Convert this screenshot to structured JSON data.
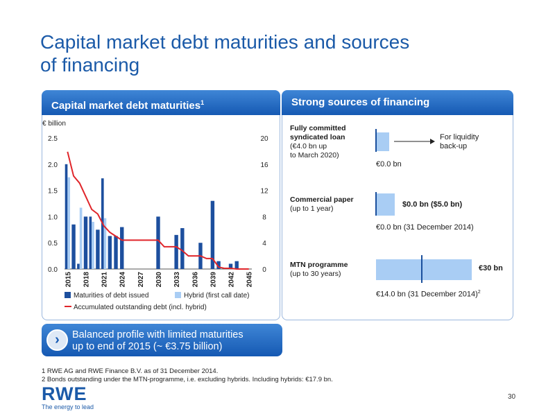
{
  "page": {
    "title_line1": "Capital market debt maturities and sources",
    "title_line2": "of financing",
    "page_number": "30"
  },
  "left_panel": {
    "header": "Capital market debt maturities",
    "header_sup": "1"
  },
  "right_panel": {
    "header": "Strong sources of financing",
    "items": [
      {
        "title_lines": [
          "Fully committed",
          "syndicated loan"
        ],
        "sub_lines": [
          "(€4.0 bn up",
          "to March 2020)"
        ],
        "used_label": "€0.0 bn",
        "arrow_text_lines": [
          "For liquidity",
          "back-up"
        ]
      },
      {
        "title_lines": [
          "Commercial paper"
        ],
        "sub_lines": [
          "(up to 1 year)"
        ],
        "box_label": "$0.0 bn ($5.0 bn)",
        "used_label": "€0.0 bn (31 December 2014)"
      },
      {
        "title_lines": [
          "MTN programme"
        ],
        "sub_lines": [
          "(up to 30 years)"
        ],
        "box_label": "€30 bn",
        "used_label": "€14.0 bn (31 December 2014)",
        "used_sup": "2"
      }
    ],
    "colors": {
      "box_fill": "#a9cdf4",
      "marker": "#1a4f9c"
    }
  },
  "callout": {
    "line1": "Balanced profile with limited maturities",
    "line2": "up to end of 2015 (~ €3.75 billion)"
  },
  "footnotes": [
    "1  RWE AG and RWE Finance B.V. as of 31 December 2014.",
    "2  Bonds outstanding under the MTN-programme, i.e. excluding hybrids. Including hybrids: €17.9 bn."
  ],
  "logo": {
    "text": "RWE",
    "tagline": "The energy to lead"
  },
  "chart_data": {
    "type": "bar",
    "ylabel": "€ billion",
    "ylim": [
      0,
      2.5
    ],
    "y_ticks": [
      "0.0",
      "0.5",
      "1.0",
      "1.5",
      "2.0",
      "2.5"
    ],
    "y2lim": [
      0,
      20
    ],
    "y2_ticks": [
      "0",
      "4",
      "8",
      "12",
      "16",
      "20"
    ],
    "x_tick_labels": [
      "2015",
      "2018",
      "2021",
      "2024",
      "2027",
      "2030",
      "2033",
      "2036",
      "2039",
      "2042",
      "2045"
    ],
    "years": [
      2015,
      2016,
      2017,
      2018,
      2019,
      2020,
      2021,
      2022,
      2023,
      2024,
      2025,
      2026,
      2027,
      2028,
      2029,
      2030,
      2031,
      2032,
      2033,
      2034,
      2035,
      2036,
      2037,
      2038,
      2039,
      2040,
      2041,
      2042,
      2043,
      2044,
      2045
    ],
    "series": [
      {
        "name": "Maturities of debt issued",
        "kind": "bar",
        "color": "#1d4f9e",
        "values": [
          2.0,
          0.85,
          0.1,
          1.0,
          1.0,
          0.75,
          1.73,
          0.63,
          0.63,
          0.8,
          0,
          0,
          0,
          0,
          0,
          1.0,
          0,
          0,
          0.65,
          0.78,
          0,
          0,
          0.5,
          0,
          1.3,
          0.15,
          0,
          0.1,
          0.15,
          0,
          0
        ]
      },
      {
        "name": "Hybrid (first call date)",
        "kind": "bar",
        "color": "#a9cdf4",
        "values": [
          1.75,
          0,
          1.17,
          0,
          0.9,
          0,
          0.97,
          0,
          0,
          0,
          0,
          0,
          0,
          0,
          0,
          0,
          0,
          0,
          0,
          0,
          0,
          0,
          0,
          0,
          0,
          0,
          0,
          0,
          0,
          0,
          0
        ]
      },
      {
        "name": "Accumulated outstanding debt (incl. hybrid)",
        "kind": "line",
        "axis": "right",
        "color": "#e0252a",
        "values": [
          17.9,
          14.2,
          13.1,
          11.1,
          9.1,
          8.4,
          6.6,
          5.6,
          5.0,
          4.4,
          4.4,
          4.4,
          4.4,
          4.4,
          4.4,
          4.4,
          3.4,
          3.4,
          3.4,
          2.8,
          2.0,
          2.0,
          2.0,
          1.6,
          1.6,
          0.3,
          0.1,
          0.1,
          0,
          0,
          0
        ]
      }
    ]
  }
}
